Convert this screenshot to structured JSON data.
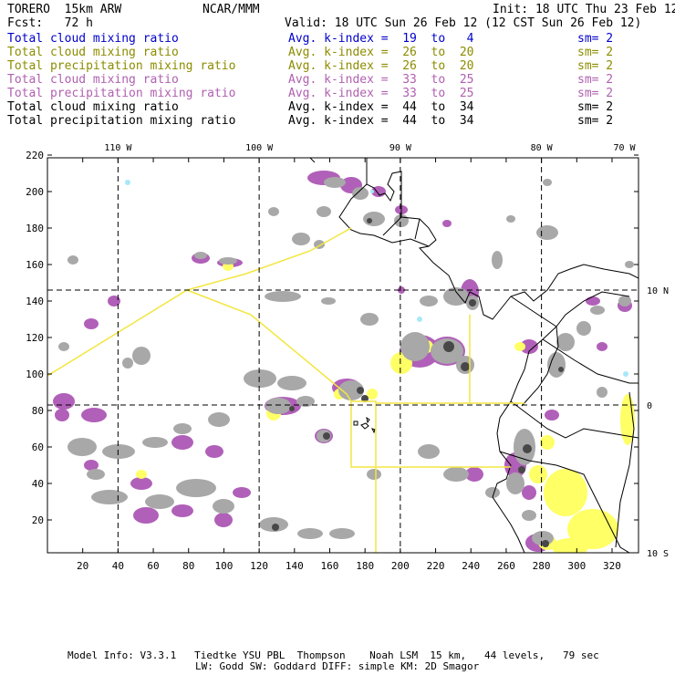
{
  "header": {
    "model": "TORERO  15km ARW",
    "org": "NCAR/MMM",
    "init": "Init: 18 UTC Thu 23 Feb 12",
    "fcst": "Fcst:   72 h",
    "valid": "Valid: 18 UTC Sun 26 Feb 12 (12 CST Sun 26 Feb 12)"
  },
  "legend": [
    {
      "field": "Total cloud mixing ratio",
      "stat": "Avg. k-index =  19  to   4",
      "sm": "sm= 2",
      "color": "#0000cc"
    },
    {
      "field": "Total cloud mixing ratio",
      "stat": "Avg. k-index =  26  to  20",
      "sm": "sm= 2",
      "color": "#8c8c00"
    },
    {
      "field": "Total precipitation mixing ratio",
      "stat": "Avg. k-index =  26  to  20",
      "sm": "sm= 2",
      "color": "#8c8c00"
    },
    {
      "field": "Total cloud mixing ratio",
      "stat": "Avg. k-index =  33  to  25",
      "sm": "sm= 2",
      "color": "#b060b0"
    },
    {
      "field": "Total precipitation mixing ratio",
      "stat": "Avg. k-index =  33  to  25",
      "sm": "sm= 2",
      "color": "#b060b0"
    },
    {
      "field": "Total cloud mixing ratio",
      "stat": "Avg. k-index =  44  to  34",
      "sm": "sm= 2",
      "color": "#000000"
    },
    {
      "field": "Total precipitation mixing ratio",
      "stat": "Avg. k-index =  44  to  34",
      "sm": "sm= 2",
      "color": "#000000"
    }
  ],
  "map": {
    "lon_labels": [
      "110 W",
      "100 W",
      "90 W",
      "80 W",
      "70 W"
    ],
    "lat_labels": [
      "10 N",
      "0",
      "10 S"
    ],
    "x_ticks": [
      "20",
      "40",
      "60",
      "80",
      "100",
      "120",
      "140",
      "160",
      "180",
      "200",
      "220",
      "240",
      "260",
      "280",
      "300",
      "320"
    ],
    "y_ticks": [
      "20",
      "40",
      "60",
      "80",
      "100",
      "120",
      "140",
      "160",
      "180",
      "200",
      "220"
    ],
    "grid_x": [
      40,
      120,
      200,
      280
    ],
    "grid_y": [
      146,
      83
    ],
    "colors": {
      "gray": "#a8a8a8",
      "dark": "#484848",
      "purple": "#b060b8",
      "yellow": "#ffff66",
      "yellow_line": "#f2e640",
      "coast": "#000000"
    }
  },
  "footer": {
    "line1": "Model Info: V3.3.1   Tiedtke YSU PBL  Thompson    Noah LSM  15 km,   44 levels,   79 sec",
    "line2": "LW: Godd SW: Goddard DIFF: simple KM: 2D Smagor"
  }
}
